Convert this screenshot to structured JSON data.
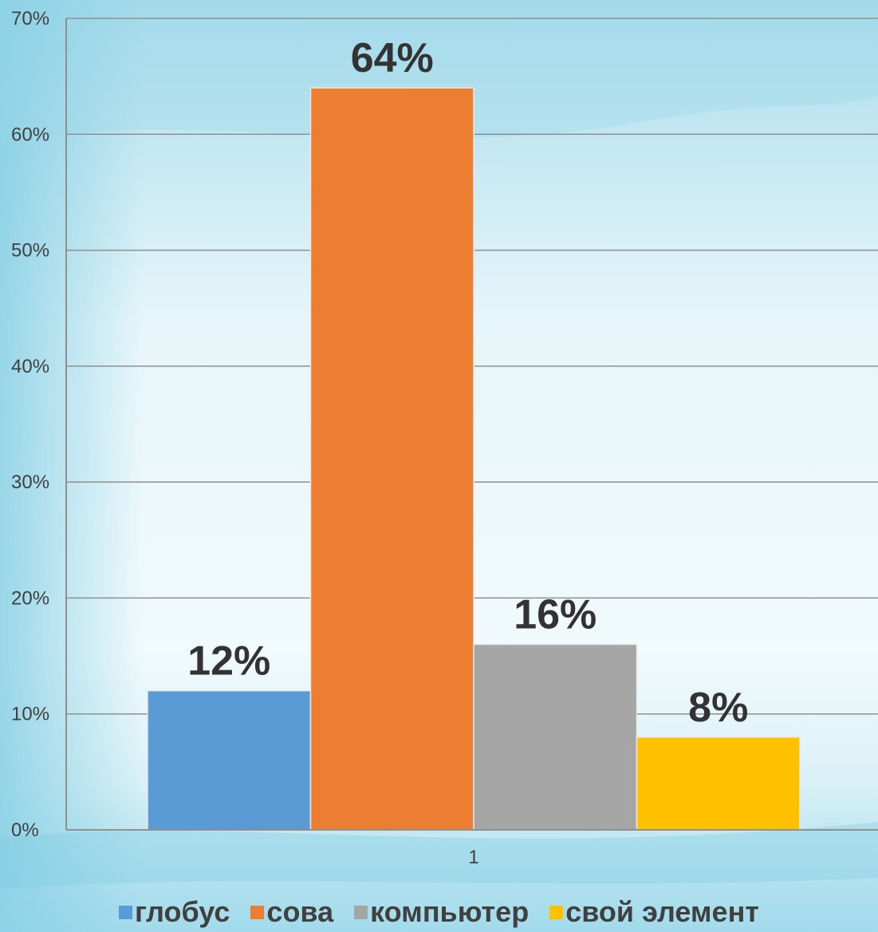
{
  "chart_data": {
    "type": "bar",
    "categories": [
      "1"
    ],
    "series": [
      {
        "name": "глобус",
        "values": [
          12
        ],
        "color": "#5b9bd5",
        "data_label": "12%"
      },
      {
        "name": "сова",
        "values": [
          64
        ],
        "color": "#ed7d31",
        "data_label": "64%"
      },
      {
        "name": "компьютер",
        "values": [
          16
        ],
        "color": "#a5a5a5",
        "data_label": "16%"
      },
      {
        "name": "свой элемент",
        "values": [
          8
        ],
        "color": "#ffc000",
        "data_label": "8%"
      }
    ],
    "ylim": [
      0,
      70
    ],
    "yticks": [
      "0%",
      "10%",
      "20%",
      "30%",
      "40%",
      "50%",
      "60%",
      "70%"
    ],
    "grid": true,
    "legend_position": "bottom",
    "title": "",
    "xlabel": "",
    "ylabel": ""
  }
}
